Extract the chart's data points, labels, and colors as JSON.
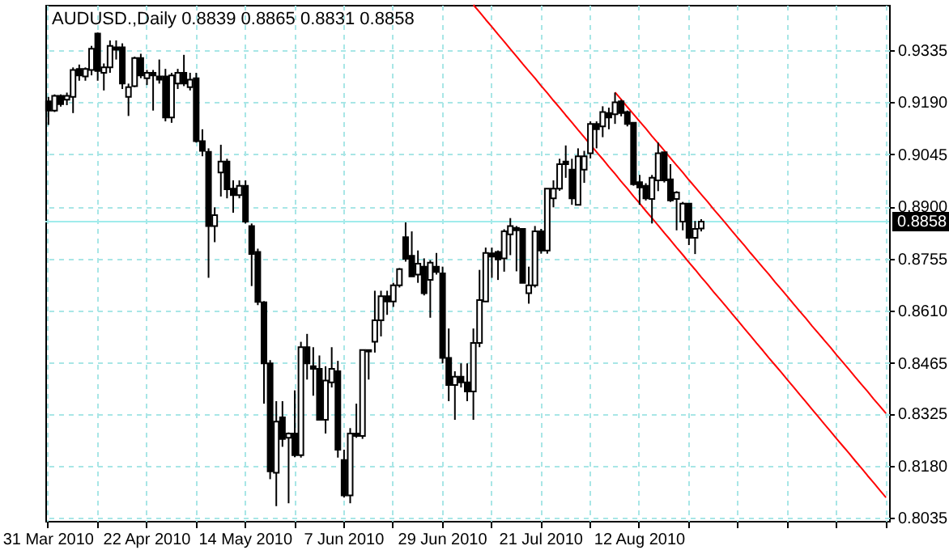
{
  "chart_data": {
    "type": "candlestick",
    "title": "AUDUSD.,Daily  0.8839 0.8865 0.8831 0.8858",
    "categories": [
      "31 Mar 2010",
      null,
      null,
      null,
      null,
      null,
      null,
      null,
      null,
      null,
      null,
      null,
      null,
      null,
      null,
      null,
      "22 Apr 2010",
      null,
      null,
      null,
      null,
      null,
      null,
      null,
      null,
      null,
      null,
      null,
      null,
      null,
      null,
      null,
      "14 May 2010",
      null,
      null,
      null,
      null,
      null,
      null,
      null,
      null,
      null,
      null,
      null,
      null,
      null,
      null,
      null,
      "7 Jun 2010",
      null,
      null,
      null,
      null,
      null,
      null,
      null,
      null,
      null,
      null,
      null,
      null,
      null,
      null,
      null,
      "29 Jun 2010",
      null,
      null,
      null,
      null,
      null,
      null,
      null,
      null,
      null,
      null,
      null,
      null,
      null,
      null,
      null,
      "21 Jul 2010",
      null,
      null,
      null,
      null,
      null,
      null,
      null,
      null,
      null,
      null,
      null,
      null,
      null,
      null,
      null,
      "12 Aug 2010",
      null,
      null,
      null,
      null,
      null,
      null,
      null,
      null,
      null,
      null,
      null,
      null,
      null,
      null,
      null,
      null,
      null,
      null,
      null,
      null,
      null,
      null,
      null,
      null,
      null,
      null,
      null,
      null,
      null,
      null,
      null,
      null,
      null,
      null,
      null,
      null,
      null,
      null,
      null,
      null
    ],
    "ohlc": [
      [
        0.9193,
        0.9205,
        0.9127,
        0.9167
      ],
      [
        0.9167,
        0.9212,
        0.9163,
        0.9208
      ],
      [
        0.9208,
        0.9212,
        0.9178,
        0.9185
      ],
      [
        0.9197,
        0.9217,
        0.9182,
        0.9208
      ],
      [
        0.9205,
        0.9287,
        0.916,
        0.928
      ],
      [
        0.9283,
        0.9295,
        0.925,
        0.9265
      ],
      [
        0.9262,
        0.9287,
        0.925,
        0.9283
      ],
      [
        0.928,
        0.9347,
        0.9265,
        0.9339
      ],
      [
        0.9381,
        0.9384,
        0.925,
        0.9277
      ],
      [
        0.9272,
        0.9298,
        0.9223,
        0.9287
      ],
      [
        0.9287,
        0.9362,
        0.9272,
        0.9347
      ],
      [
        0.9343,
        0.9362,
        0.9309,
        0.9336
      ],
      [
        0.9343,
        0.9354,
        0.9227,
        0.9242
      ],
      [
        0.9205,
        0.9242,
        0.9152,
        0.9232
      ],
      [
        0.9235,
        0.9317,
        0.9232,
        0.9313
      ],
      [
        0.9313,
        0.9325,
        0.9257,
        0.9265
      ],
      [
        0.9257,
        0.928,
        0.9238,
        0.9272
      ],
      [
        0.9272,
        0.928,
        0.9167,
        0.9265
      ],
      [
        0.9262,
        0.9309,
        0.9242,
        0.9253
      ],
      [
        0.9262,
        0.9283,
        0.9137,
        0.9148
      ],
      [
        0.9148,
        0.9272,
        0.9133,
        0.9265
      ],
      [
        0.9242,
        0.9283,
        0.9227,
        0.9272
      ],
      [
        0.9272,
        0.9322,
        0.9235,
        0.9242
      ],
      [
        0.9232,
        0.9272,
        0.9223,
        0.9253
      ],
      [
        0.9257,
        0.9272,
        0.9078,
        0.9082
      ],
      [
        0.9082,
        0.9115,
        0.904,
        0.9055
      ],
      [
        0.9052,
        0.9062,
        0.8702,
        0.8846
      ],
      [
        0.8846,
        0.8898,
        0.8801,
        0.8876
      ],
      [
        0.8995,
        0.9072,
        0.8928,
        0.9025
      ],
      [
        0.9025,
        0.9033,
        0.8923,
        0.8948
      ],
      [
        0.895,
        0.8973,
        0.8883,
        0.8932
      ],
      [
        0.8932,
        0.8973,
        0.8923,
        0.8958
      ],
      [
        0.8958,
        0.8973,
        0.8853,
        0.8858
      ],
      [
        0.8846,
        0.8853,
        0.8679,
        0.8768
      ],
      [
        0.8774,
        0.8783,
        0.8626,
        0.8635
      ],
      [
        0.8634,
        0.8637,
        0.8352,
        0.8464
      ],
      [
        0.8464,
        0.8473,
        0.8142,
        0.8164
      ],
      [
        0.816,
        0.8359,
        0.8067,
        0.8302
      ],
      [
        0.8314,
        0.8359,
        0.8232,
        0.8254
      ],
      [
        0.8257,
        0.8272,
        0.8075,
        0.8269
      ],
      [
        0.8269,
        0.8389,
        0.8203,
        0.8209
      ],
      [
        0.8209,
        0.8524,
        0.8202,
        0.8509
      ],
      [
        0.8509,
        0.8546,
        0.8419,
        0.8464
      ],
      [
        0.8456,
        0.8509,
        0.8374,
        0.8449
      ],
      [
        0.8449,
        0.8486,
        0.8307,
        0.8307
      ],
      [
        0.8307,
        0.8456,
        0.8269,
        0.8416
      ],
      [
        0.8411,
        0.8509,
        0.8397,
        0.8449
      ],
      [
        0.8442,
        0.8471,
        0.8202,
        0.8224
      ],
      [
        0.8195,
        0.8224,
        0.8091,
        0.8097
      ],
      [
        0.8097,
        0.8284,
        0.8075,
        0.8269
      ],
      [
        0.8269,
        0.8352,
        0.8257,
        0.8262
      ],
      [
        0.8262,
        0.8501,
        0.8254,
        0.8501
      ],
      [
        0.8501,
        0.8501,
        0.8419,
        0.8497
      ],
      [
        0.8524,
        0.8666,
        0.8494,
        0.8584
      ],
      [
        0.8584,
        0.8666,
        0.8539,
        0.8651
      ],
      [
        0.8651,
        0.8666,
        0.8599,
        0.8636
      ],
      [
        0.8636,
        0.8688,
        0.8621,
        0.8681
      ],
      [
        0.8681,
        0.8729,
        0.8675,
        0.8726
      ],
      [
        0.8815,
        0.8856,
        0.8747,
        0.8755
      ],
      [
        0.8763,
        0.8831,
        0.8706,
        0.8706
      ],
      [
        0.8711,
        0.8778,
        0.8688,
        0.8741
      ],
      [
        0.8733,
        0.8756,
        0.8653,
        0.8659
      ],
      [
        0.8696,
        0.8751,
        0.8591,
        0.8744
      ],
      [
        0.8733,
        0.8771,
        0.8711,
        0.8718
      ],
      [
        0.8714,
        0.8733,
        0.8464,
        0.8479
      ],
      [
        0.8479,
        0.8561,
        0.8359,
        0.8404
      ],
      [
        0.8404,
        0.8442,
        0.8307,
        0.8427
      ],
      [
        0.8427,
        0.8464,
        0.8397,
        0.8411
      ],
      [
        0.8411,
        0.8464,
        0.8359,
        0.8386
      ],
      [
        0.8386,
        0.8561,
        0.8307,
        0.8521
      ],
      [
        0.8521,
        0.8724,
        0.8509,
        0.864
      ],
      [
        0.8636,
        0.8786,
        0.8635,
        0.8771
      ],
      [
        0.877,
        0.8786,
        0.8702,
        0.8761
      ],
      [
        0.8774,
        0.8778,
        0.8696,
        0.8753
      ],
      [
        0.8756,
        0.8837,
        0.8719,
        0.8831
      ],
      [
        0.8823,
        0.8868,
        0.8765,
        0.8846
      ],
      [
        0.8841,
        0.8846,
        0.872,
        0.8834
      ],
      [
        0.8838,
        0.8838,
        0.8688,
        0.8688
      ],
      [
        0.8659,
        0.8733,
        0.863,
        0.8681
      ],
      [
        0.8681,
        0.8846,
        0.8675,
        0.8831
      ],
      [
        0.8831,
        0.8838,
        0.8769,
        0.8778
      ],
      [
        0.8778,
        0.895,
        0.8769,
        0.895
      ],
      [
        0.8923,
        0.8973,
        0.8898,
        0.895
      ],
      [
        0.895,
        0.9033,
        0.8944,
        0.9018
      ],
      [
        0.9025,
        0.907,
        0.898,
        0.9018
      ],
      [
        0.9003,
        0.9033,
        0.8905,
        0.8923
      ],
      [
        0.8905,
        0.9062,
        0.8904,
        0.904
      ],
      [
        0.9003,
        0.9055,
        0.8966,
        0.904
      ],
      [
        0.9048,
        0.9137,
        0.9034,
        0.913
      ],
      [
        0.913,
        0.9137,
        0.9062,
        0.9115
      ],
      [
        0.9123,
        0.9179,
        0.9093,
        0.9163
      ],
      [
        0.916,
        0.9175,
        0.9115,
        0.9148
      ],
      [
        0.9157,
        0.9217,
        0.913,
        0.919
      ],
      [
        0.9193,
        0.9197,
        0.9151,
        0.916
      ],
      [
        0.9163,
        0.9167,
        0.9123,
        0.913
      ],
      [
        0.9133,
        0.9133,
        0.8958,
        0.8962
      ],
      [
        0.8968,
        0.8988,
        0.8905,
        0.8953
      ],
      [
        0.8958,
        0.8965,
        0.8917,
        0.8923
      ],
      [
        0.8921,
        0.8988,
        0.8853,
        0.898
      ],
      [
        0.8973,
        0.9078,
        0.8943,
        0.9048
      ],
      [
        0.9051,
        0.9051,
        0.8967,
        0.8973
      ],
      [
        0.8976,
        0.9018,
        0.8913,
        0.8917
      ],
      [
        0.8921,
        0.8943,
        0.8834,
        0.8939
      ],
      [
        0.8858,
        0.8913,
        0.8834,
        0.8908
      ],
      [
        0.8908,
        0.8908,
        0.8793,
        0.8813
      ],
      [
        0.8813,
        0.886,
        0.8768,
        0.8838
      ],
      [
        0.8839,
        0.8865,
        0.8831,
        0.8858
      ],
      null,
      null,
      null,
      null,
      null,
      null,
      null,
      null,
      null,
      null,
      null,
      null,
      null,
      null,
      null,
      null,
      null,
      null,
      null,
      null,
      null,
      null,
      null,
      null,
      null,
      null,
      null,
      null,
      null,
      null
    ],
    "series": [
      {
        "type": "line",
        "color": "#ff0000",
        "values": [
          null,
          null,
          null,
          null,
          null,
          null,
          null,
          null,
          null,
          null,
          null,
          null,
          null,
          null,
          null,
          null,
          null,
          null,
          null,
          null,
          null,
          null,
          null,
          null,
          null,
          null,
          null,
          null,
          null,
          null,
          null,
          null,
          null,
          null,
          null,
          null,
          null,
          null,
          null,
          null,
          null,
          null,
          null,
          null,
          null,
          null,
          null,
          null,
          null,
          null,
          null,
          null,
          null,
          null,
          null,
          null,
          null,
          null,
          null,
          null,
          null,
          null,
          null,
          null,
          null,
          null,
          null,
          null,
          null,
          0.9461,
          0.9441,
          0.942,
          0.94,
          0.9379,
          0.9359,
          0.9338,
          0.9318,
          0.9297,
          0.9277,
          0.9257,
          0.9236,
          0.9216,
          0.9195,
          0.9175,
          0.9154,
          0.9134,
          0.9113,
          0.9093,
          0.9072,
          0.9052,
          0.9032,
          0.9011,
          0.8991,
          0.897,
          0.895,
          0.8929,
          0.8909,
          0.8888,
          0.8868,
          0.8848,
          0.8827,
          0.8807,
          0.8786,
          0.8766,
          0.8745,
          0.8725,
          0.8704,
          0.8684,
          0.8663,
          0.8643,
          0.8623,
          0.8602,
          0.8582,
          0.8561,
          0.8541,
          0.852,
          0.85,
          0.8479,
          0.8459,
          0.8439,
          0.8418,
          0.8398,
          0.8377,
          0.8357,
          0.8336,
          0.8316,
          0.8295,
          0.8275,
          0.8254,
          0.8234,
          0.8214,
          0.8193,
          0.8173,
          0.8152,
          0.8132,
          0.8111,
          0.8091
        ]
      },
      {
        "type": "line",
        "color": "#ff0000",
        "values": [
          null,
          null,
          null,
          null,
          null,
          null,
          null,
          null,
          null,
          null,
          null,
          null,
          null,
          null,
          null,
          null,
          null,
          null,
          null,
          null,
          null,
          null,
          null,
          null,
          null,
          null,
          null,
          null,
          null,
          null,
          null,
          null,
          null,
          null,
          null,
          null,
          null,
          null,
          null,
          null,
          null,
          null,
          null,
          null,
          null,
          null,
          null,
          null,
          null,
          null,
          null,
          null,
          null,
          null,
          null,
          null,
          null,
          null,
          null,
          null,
          null,
          null,
          null,
          null,
          null,
          null,
          null,
          null,
          null,
          null,
          null,
          null,
          null,
          null,
          null,
          null,
          null,
          null,
          null,
          null,
          null,
          null,
          null,
          null,
          null,
          null,
          null,
          null,
          null,
          null,
          null,
          null,
          0.9218,
          0.9198,
          0.9177,
          0.9157,
          0.9137,
          0.9117,
          0.9096,
          0.9076,
          0.9056,
          0.9035,
          0.9015,
          0.8995,
          0.8974,
          0.8954,
          0.8934,
          0.8914,
          0.8893,
          0.8873,
          0.8853,
          0.8832,
          0.8812,
          0.8792,
          0.8771,
          0.8751,
          0.8731,
          0.8711,
          0.869,
          0.867,
          0.865,
          0.8629,
          0.8609,
          0.8589,
          0.8568,
          0.8548,
          0.8528,
          0.8508,
          0.8487,
          0.8467,
          0.8447,
          0.8426,
          0.8406,
          0.8386,
          0.8365,
          0.8345,
          0.8325
        ]
      }
    ],
    "ylim": [
      0.8026,
      0.9461
    ],
    "yticks": [
      0.8035,
      {
        "value": 0.818,
        "label": "0.8180"
      },
      0.8325,
      0.8465,
      {
        "value": 0.861,
        "label": "0.8610"
      },
      0.8755,
      {
        "value": 0.89,
        "label": "0.8900"
      },
      0.9045,
      {
        "value": 0.919,
        "label": "0.9190"
      },
      0.9335
    ],
    "ref_lines": [
      {
        "axis": "y",
        "value": 0.8858,
        "label": "0.8858",
        "color": "#a0ecec"
      }
    ],
    "grid": true
  }
}
